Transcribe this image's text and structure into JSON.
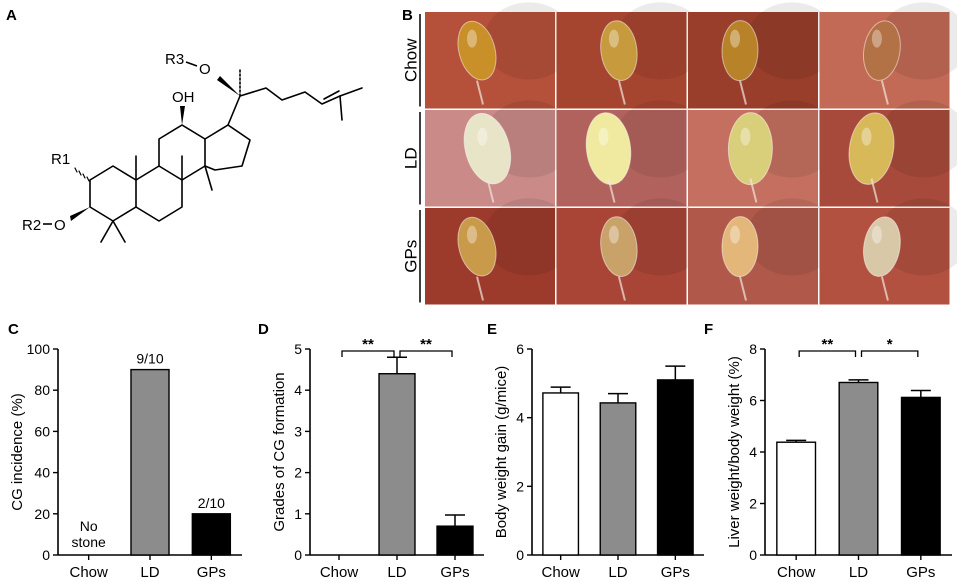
{
  "panels": {
    "A": "A",
    "B": "B",
    "C": "C",
    "D": "D",
    "E": "E",
    "F": "F"
  },
  "structure": {
    "r1": "R1",
    "r2": "R2",
    "r3": "R3",
    "oh": "OH",
    "o_r2": "O",
    "o_r3": "O"
  },
  "photo_grid": {
    "rows": [
      "Chow",
      "LD",
      "GPs"
    ],
    "tones": [
      [
        "#b5503a",
        "#a6452f",
        "#9a3e2c",
        "#c26a55"
      ],
      [
        "#c98a88",
        "#b2625d",
        "#c46f5f",
        "#a84a3b"
      ],
      [
        "#9c3b2c",
        "#a84536",
        "#b0594a",
        "#b2513f"
      ]
    ],
    "gallbladder": [
      [
        "#c9902a",
        "#c79a3d",
        "#b88328",
        "#b37246"
      ],
      [
        "#e8e4c8",
        "#f0eaa0",
        "#d9cf7a",
        "#d8b95a"
      ],
      [
        "#c99a4a",
        "#c9a26a",
        "#e3b77a",
        "#d9c8a8"
      ]
    ]
  },
  "chart_data": [
    {
      "panel": "C",
      "type": "bar",
      "categories": [
        "Chow",
        "LD",
        "GPs"
      ],
      "values": [
        0,
        90,
        20
      ],
      "ylabel": "CG incidence (%)",
      "ylim": [
        0,
        100
      ],
      "yticks": [
        "0",
        "20",
        "40",
        "60",
        "80",
        "100"
      ],
      "bar_colors": [
        "#ffffff",
        "#8c8c8c",
        "#000000"
      ],
      "annotations": [
        "No stone",
        "9/10",
        "2/10"
      ],
      "no_stone_lines": [
        "No",
        "stone"
      ]
    },
    {
      "panel": "D",
      "type": "bar",
      "categories": [
        "Chow",
        "LD",
        "GPs"
      ],
      "values": [
        0,
        4.4,
        0.7
      ],
      "errors": [
        0,
        0.4,
        0.27
      ],
      "ylabel": "Grades of CG formation",
      "ylim": [
        0,
        5
      ],
      "yticks": [
        "0",
        "1",
        "2",
        "3",
        "4",
        "5"
      ],
      "bar_colors": [
        "#ffffff",
        "#8c8c8c",
        "#000000"
      ],
      "significance": [
        {
          "from": "Chow",
          "to": "LD",
          "label": "**"
        },
        {
          "from": "LD",
          "to": "GPs",
          "label": "**"
        }
      ]
    },
    {
      "panel": "E",
      "type": "bar",
      "categories": [
        "Chow",
        "LD",
        "GPs"
      ],
      "values": [
        4.72,
        4.43,
        5.1
      ],
      "errors": [
        0.17,
        0.27,
        0.4
      ],
      "ylabel": "Body weight gain (g/mice)",
      "ylim": [
        0,
        6
      ],
      "yticks": [
        "0",
        "2",
        "4",
        "6"
      ],
      "bar_colors": [
        "#ffffff",
        "#8c8c8c",
        "#000000"
      ]
    },
    {
      "panel": "F",
      "type": "bar",
      "categories": [
        "Chow",
        "LD",
        "GPs"
      ],
      "values": [
        4.38,
        6.7,
        6.12
      ],
      "errors": [
        0.07,
        0.1,
        0.27
      ],
      "ylabel": "Liver weight/body weight  (%)",
      "ylim": [
        0,
        8
      ],
      "yticks": [
        "0",
        "2",
        "4",
        "6",
        "8"
      ],
      "bar_colors": [
        "#ffffff",
        "#8c8c8c",
        "#000000"
      ],
      "significance": [
        {
          "from": "Chow",
          "to": "LD",
          "label": "**"
        },
        {
          "from": "LD",
          "to": "GPs",
          "label": "*"
        }
      ]
    }
  ]
}
